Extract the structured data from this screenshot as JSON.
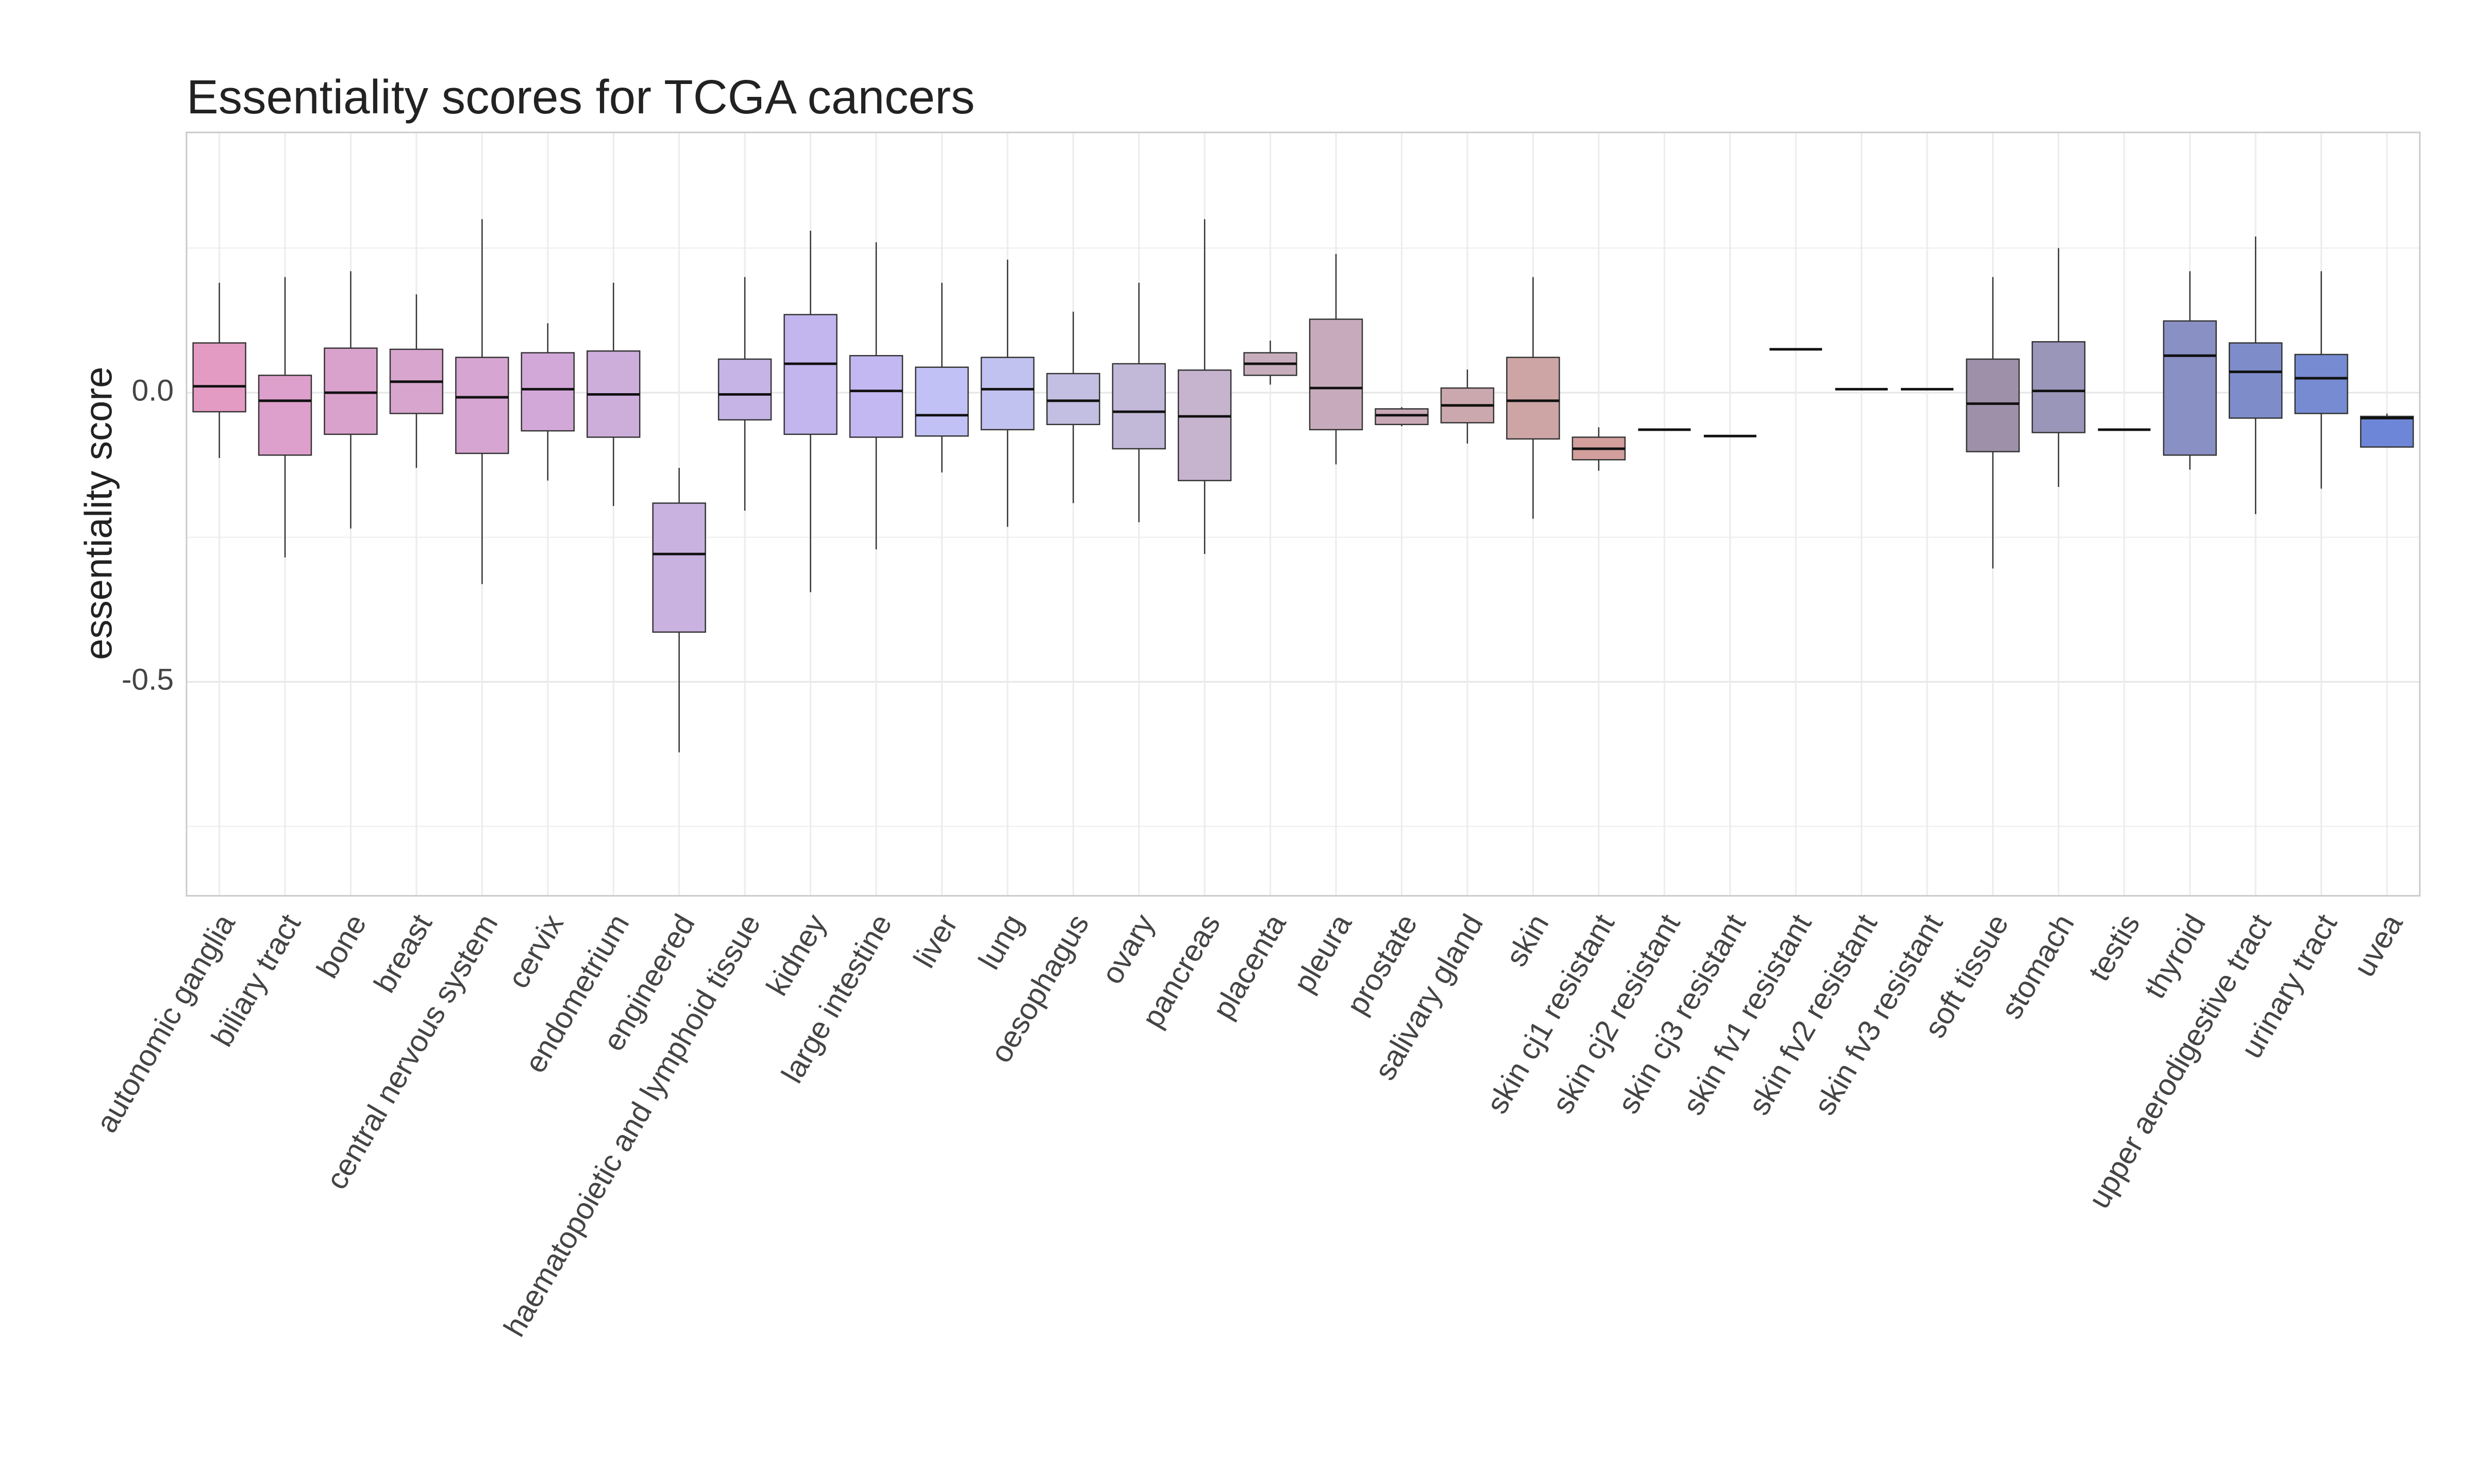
{
  "chart_data": {
    "type": "box",
    "title": "Essentiality scores for TCGA cancers",
    "y_label": "essentiality score",
    "categories": [
      "autonomic ganglia",
      "biliary tract",
      "bone",
      "breast",
      "central nervous system",
      "cervix",
      "endometrium",
      "engineered",
      "haematopoietic and lymphoid tissue",
      "kidney",
      "large intestine",
      "liver",
      "lung",
      "oesophagus",
      "ovary",
      "pancreas",
      "placenta",
      "pleura",
      "prostate",
      "salivary gland",
      "skin",
      "skin cj1 resistant",
      "skin cj2 resistant",
      "skin cj3 resistant",
      "skin fv1 resistant",
      "skin fv2 resistant",
      "skin fv3 resistant",
      "soft tissue",
      "stomach",
      "testis",
      "thyroid",
      "upper aerodigestive tract",
      "urinary tract",
      "uvea"
    ],
    "whisker_high": [
      0.19,
      0.2,
      0.21,
      0.17,
      0.3,
      0.12,
      0.19,
      -0.13,
      0.2,
      0.28,
      0.26,
      0.19,
      0.23,
      0.14,
      0.19,
      0.3,
      0.09,
      0.24,
      -0.025,
      0.04,
      0.2,
      -0.06,
      -0.064,
      -0.075,
      0.075,
      0.006,
      0.006,
      0.2,
      0.25,
      -0.064,
      0.21,
      0.27,
      0.21,
      -0.036
    ],
    "q3": [
      0.086,
      0.03,
      0.077,
      0.075,
      0.061,
      0.069,
      0.072,
      -0.191,
      0.058,
      0.135,
      0.064,
      0.044,
      0.061,
      0.033,
      0.05,
      0.039,
      0.069,
      0.127,
      -0.028,
      0.008,
      0.061,
      -0.077,
      -0.064,
      -0.075,
      0.075,
      0.006,
      0.006,
      0.058,
      0.088,
      -0.064,
      0.124,
      0.086,
      0.066,
      -0.041
    ],
    "median": [
      0.011,
      -0.014,
      0,
      0.019,
      -0.008,
      0.006,
      -0.003,
      -0.279,
      -0.003,
      0.05,
      0.003,
      -0.039,
      0.006,
      -0.014,
      -0.033,
      -0.041,
      0.05,
      0.008,
      -0.039,
      -0.022,
      -0.014,
      -0.097,
      -0.064,
      -0.075,
      0.075,
      0.006,
      0.006,
      -0.019,
      0.003,
      -0.064,
      0.064,
      0.036,
      0.025,
      -0.044
    ],
    "q1": [
      -0.033,
      -0.108,
      -0.072,
      -0.036,
      -0.105,
      -0.066,
      -0.077,
      -0.414,
      -0.047,
      -0.072,
      -0.077,
      -0.075,
      -0.064,
      -0.055,
      -0.097,
      -0.152,
      0.03,
      -0.064,
      -0.055,
      -0.052,
      -0.08,
      -0.116,
      -0.064,
      -0.075,
      0.075,
      0.006,
      0.006,
      -0.102,
      -0.069,
      -0.064,
      -0.108,
      -0.044,
      -0.036,
      -0.094
    ],
    "whisker_low": [
      -0.113,
      -0.285,
      -0.235,
      -0.13,
      -0.331,
      -0.152,
      -0.196,
      -0.622,
      -0.204,
      -0.345,
      -0.271,
      -0.138,
      -0.232,
      -0.191,
      -0.224,
      -0.279,
      0.014,
      -0.124,
      -0.058,
      -0.088,
      -0.218,
      -0.135,
      -0.064,
      -0.075,
      0.075,
      0.006,
      0.006,
      -0.304,
      -0.163,
      -0.064,
      -0.133,
      -0.21,
      -0.166,
      -0.094
    ],
    "colors": [
      "#e39bc3",
      "#dd9fcb",
      "#d9a2cc",
      "#d8a5cf",
      "#d6a5d1",
      "#d2a8d8",
      "#cdaedb",
      "#c9b1e0",
      "#c6b4e6",
      "#c3b6ee",
      "#c3b8f2",
      "#c1c1f5",
      "#c1c2f0",
      "#c3bfe2",
      "#c2b8d8",
      "#c6b3ce",
      "#c8aebc",
      "#c7abbc",
      "#c9a8b5",
      "#cba8ad",
      "#cda5a5",
      "#d29f9c",
      "#c9a2a5",
      "#bfa3ab",
      "#b5a2b0",
      "#aca0b0",
      "#a59cac",
      "#9f90aa",
      "#9a96b9",
      "#9696bd",
      "#8990c4",
      "#7e8dca",
      "#768bd1",
      "#6e86d8"
    ],
    "ylim": [
      -0.87,
      0.45
    ],
    "yticks": [
      {
        "value": -0.5,
        "label": "-0.5"
      },
      {
        "value": 0,
        "label": "0.0"
      }
    ],
    "yminor": [
      -0.75,
      -0.25,
      0.25
    ],
    "grid": true
  }
}
